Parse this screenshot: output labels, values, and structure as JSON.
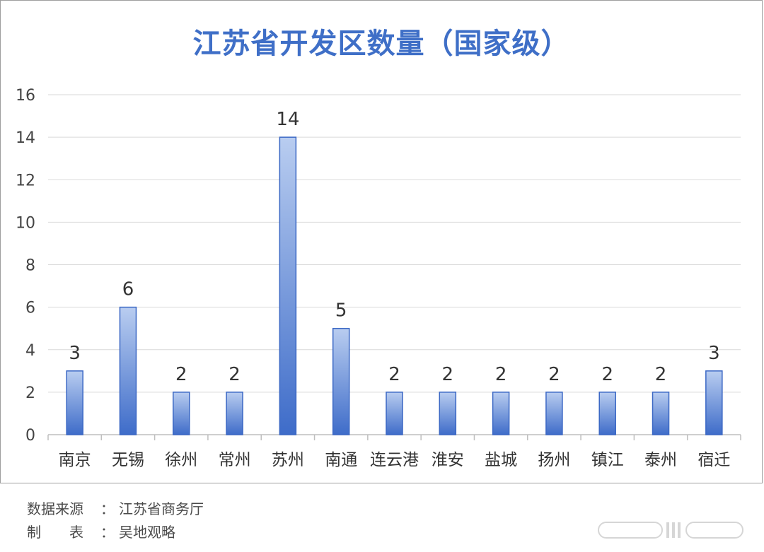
{
  "chart_data": {
    "type": "bar",
    "title": "江苏省开发区数量（国家级）",
    "categories": [
      "南京",
      "无锡",
      "徐州",
      "常州",
      "苏州",
      "南通",
      "连云港",
      "淮安",
      "盐城",
      "扬州",
      "镇江",
      "泰州",
      "宿迁"
    ],
    "values": [
      3,
      6,
      2,
      2,
      14,
      5,
      2,
      2,
      2,
      2,
      2,
      2,
      3
    ],
    "ylim": [
      0,
      16
    ],
    "yticks": [
      0,
      2,
      4,
      6,
      8,
      10,
      12,
      14,
      16
    ],
    "grid": true,
    "legend": "none",
    "colors": {
      "bar_top": "#b9cdf0",
      "bar_bottom": "#3e6cc9",
      "bar_edge": "#3a67c4",
      "grid": "#d9d9d9"
    }
  },
  "footer": {
    "source_label": "数据来源",
    "source_sep": "：",
    "source_value": "江苏省商务厅",
    "maker_label": "制　　表",
    "maker_sep": "：",
    "maker_value": "吴地观略"
  }
}
